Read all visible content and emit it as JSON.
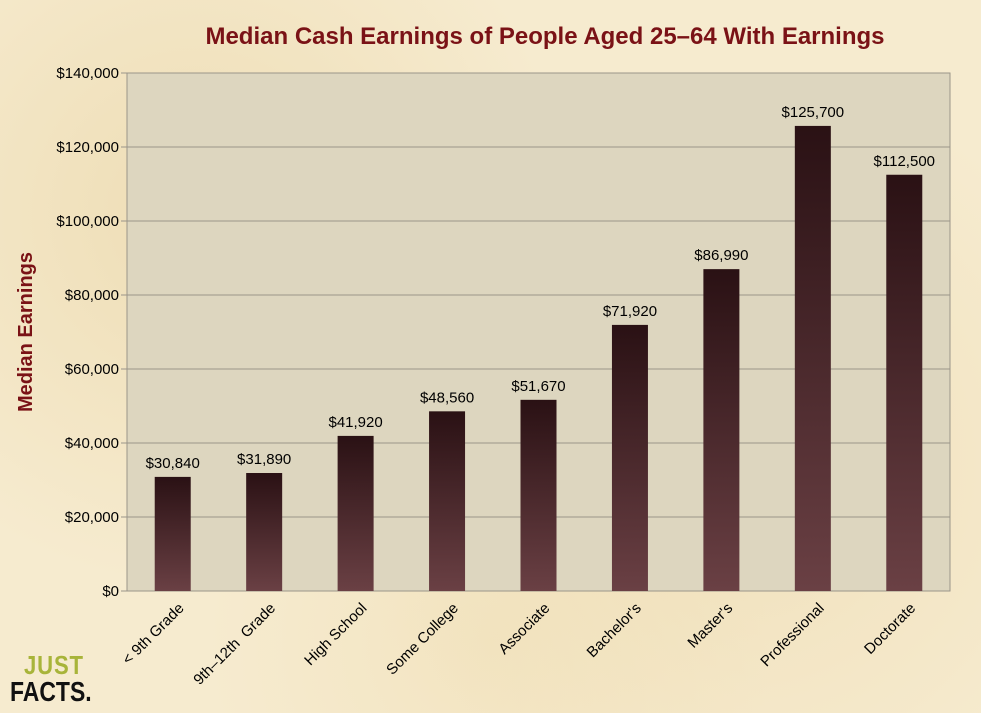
{
  "colors": {
    "title": "#7a1216",
    "plot_bg": "#ddd6bf",
    "grid": "#9a958a",
    "bar_top": "#2a1114",
    "bar_bottom": "#6a4044",
    "logo_just": "#a8b43a",
    "logo_facts": "#111111"
  },
  "logo": {
    "line1": "JUST",
    "line2": "FACTS."
  },
  "chart_data": {
    "type": "bar",
    "title": "Median Cash Earnings of People Aged 25–64 With Earnings",
    "xlabel": "",
    "ylabel": "Median Earnings",
    "ylim": [
      0,
      140000
    ],
    "yticks": [
      0,
      20000,
      40000,
      60000,
      80000,
      100000,
      120000,
      140000
    ],
    "ytick_labels": [
      "$0",
      "$20,000",
      "$40,000",
      "$60,000",
      "$80,000",
      "$100,000",
      "$120,000",
      "$140,000"
    ],
    "grid": true,
    "legend": "none",
    "categories": [
      "< 9th Grade",
      "9th–12th  Grade",
      "High School",
      "Some College",
      "Associate",
      "Bachelor's",
      "Master's",
      "Professional",
      "Doctorate"
    ],
    "values": [
      30840,
      31890,
      41920,
      48560,
      51670,
      71920,
      86990,
      125700,
      112500
    ],
    "data_labels": [
      "$30,840",
      "$31,890",
      "$41,920",
      "$48,560",
      "$51,670",
      "$71,920",
      "$86,990",
      "$125,700",
      "$112,500"
    ]
  }
}
